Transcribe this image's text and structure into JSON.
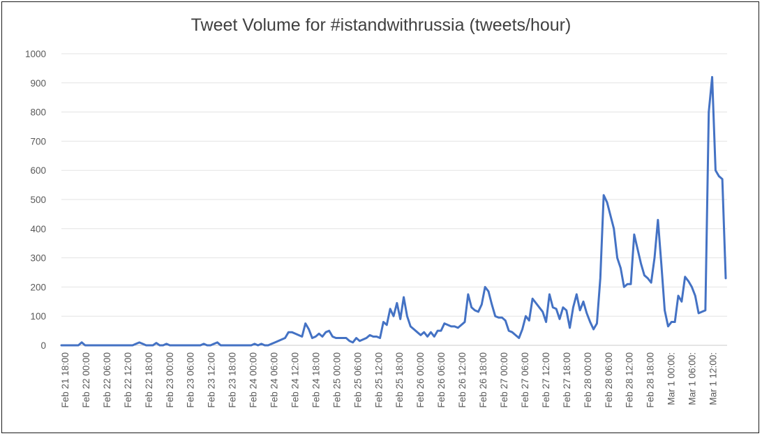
{
  "chart_data": {
    "type": "line",
    "title": "Tweet Volume for #istandwithrussia (tweets/hour)",
    "xlabel": "",
    "ylabel": "",
    "ylim": [
      0,
      1000
    ],
    "yticks": [
      0,
      100,
      200,
      300,
      400,
      500,
      600,
      700,
      800,
      900,
      1000
    ],
    "grid": true,
    "legend": "none",
    "x_tick_labels": [
      "Feb 21 18:00",
      "Feb 22 00:00",
      "Feb 22 06:00",
      "Feb 22 12:00",
      "Feb 22 18:00",
      "Feb 23 00:00",
      "Feb 23 06:00",
      "Feb 23 12:00",
      "Feb 23 18:00",
      "Feb 24 00:00",
      "Feb 24 06:00",
      "Feb 24 12:00",
      "Feb 24 18:00",
      "Feb 25 00:00",
      "Feb 25 06:00",
      "Feb 25 12:00",
      "Feb 25 18:00",
      "Feb 26 00:00",
      "Feb 26 06:00",
      "Feb 26 12:00",
      "Feb 26 18:00",
      "Feb 27 00:00",
      "Feb 27 06:00",
      "Feb 27 12:00",
      "Feb 27 18:00",
      "Feb 28 00:00",
      "Feb 28 06:00",
      "Feb 28 12:00",
      "Feb 28 18:00",
      "Mar 1 00:00:",
      "Mar 1 06:00:",
      "Mar 1 12:00:"
    ],
    "series_color": "#4472c4",
    "series": [
      {
        "values": [
          0,
          0,
          0,
          0,
          0,
          0,
          10,
          0,
          0,
          0,
          0,
          0,
          0,
          0,
          0,
          0,
          0,
          0,
          0,
          0,
          0,
          0,
          5,
          10,
          5,
          0,
          0,
          0,
          8,
          0,
          0,
          5,
          0,
          0,
          0,
          0,
          0,
          0,
          0,
          0,
          0,
          0,
          5,
          0,
          0,
          5,
          10,
          0,
          0,
          0,
          0,
          0,
          0,
          0,
          0,
          0,
          0,
          5,
          0,
          5,
          0,
          0,
          5,
          10,
          15,
          20,
          25,
          45,
          45,
          40,
          35,
          30,
          75,
          55,
          25,
          30,
          40,
          30,
          45,
          50,
          30,
          25,
          25,
          25,
          25,
          15,
          10,
          25,
          15,
          20,
          25,
          35,
          30,
          30,
          25,
          80,
          70,
          125,
          100,
          145,
          90,
          165,
          100,
          65,
          55,
          45,
          35,
          45,
          30,
          45,
          30,
          50,
          50,
          75,
          70,
          65,
          65,
          60,
          70,
          80,
          175,
          130,
          120,
          115,
          140,
          200,
          185,
          140,
          100,
          95,
          95,
          85,
          50,
          45,
          35,
          25,
          55,
          100,
          85,
          160,
          145,
          130,
          115,
          80,
          175,
          130,
          125,
          90,
          130,
          120,
          60,
          130,
          175,
          120,
          150,
          110,
          80,
          55,
          75,
          230,
          515,
          490,
          445,
          400,
          300,
          265,
          200,
          210,
          210,
          380,
          330,
          280,
          240,
          230,
          215,
          300,
          430,
          280,
          120,
          65,
          80,
          80,
          170,
          150,
          235,
          220,
          200,
          170,
          110,
          115,
          120,
          800,
          920,
          600,
          580,
          570,
          230
        ]
      }
    ]
  }
}
